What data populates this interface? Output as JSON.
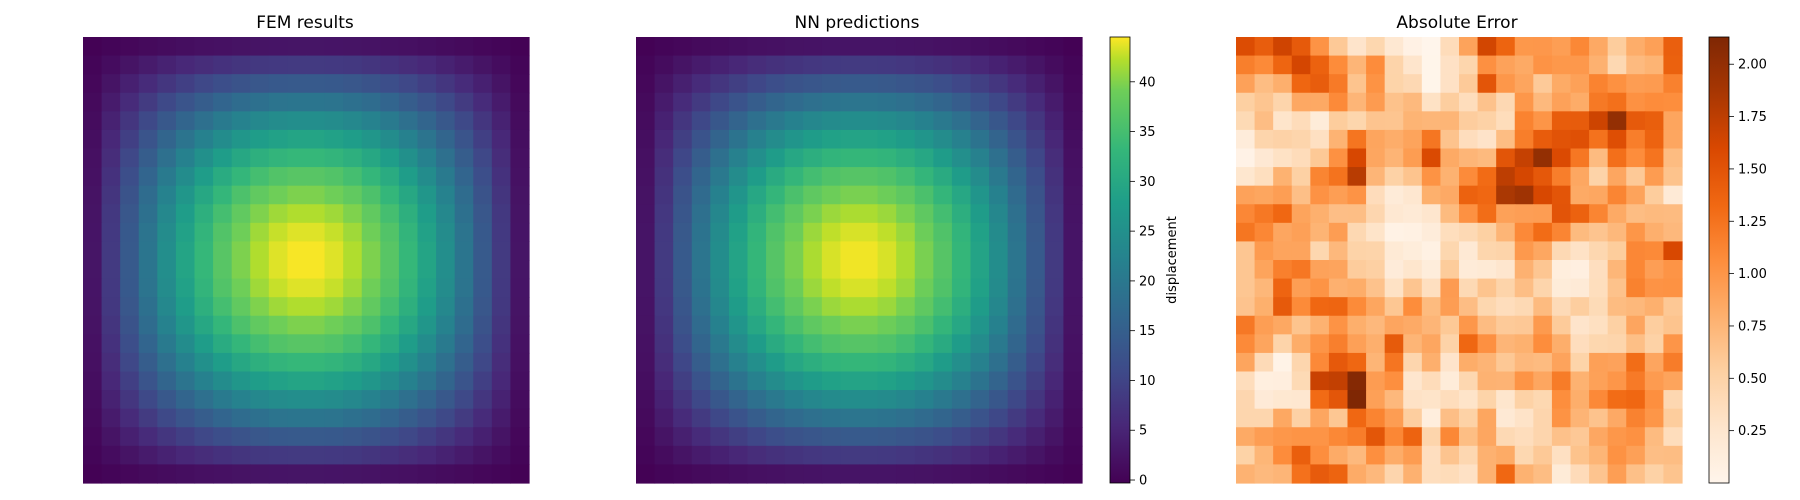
{
  "chart_data": [
    {
      "type": "heatmap",
      "title": "FEM results",
      "grid": [
        24,
        24
      ],
      "field": "displacement",
      "value_range": [
        0,
        44
      ],
      "axes_visible": false,
      "colormap": "viridis"
    },
    {
      "type": "heatmap",
      "title": "NN predictions",
      "grid": [
        24,
        24
      ],
      "field": "displacement",
      "value_range": [
        0,
        44
      ],
      "axes_visible": false,
      "colormap": "viridis",
      "colorbar": {
        "label": "displacement",
        "ticks": [
          "0",
          "5",
          "10",
          "15",
          "20",
          "25",
          "30",
          "35",
          "40"
        ],
        "tick_values": [
          0,
          5,
          10,
          15,
          20,
          25,
          30,
          35,
          40
        ],
        "range": [
          -0.3,
          44.5
        ]
      }
    },
    {
      "type": "heatmap",
      "title": "Absolute Error",
      "grid": [
        24,
        24
      ],
      "value_range": [
        0.0,
        2.13
      ],
      "axes_visible": false,
      "colormap": "oranges",
      "colorbar": {
        "label": "",
        "ticks": [
          "0.25",
          "0.50",
          "0.75",
          "1.00",
          "1.25",
          "1.50",
          "1.75",
          "2.00"
        ],
        "tick_values": [
          0.25,
          0.5,
          0.75,
          1.0,
          1.25,
          1.5,
          1.75,
          2.0
        ],
        "range": [
          0.0,
          2.13
        ]
      }
    }
  ]
}
